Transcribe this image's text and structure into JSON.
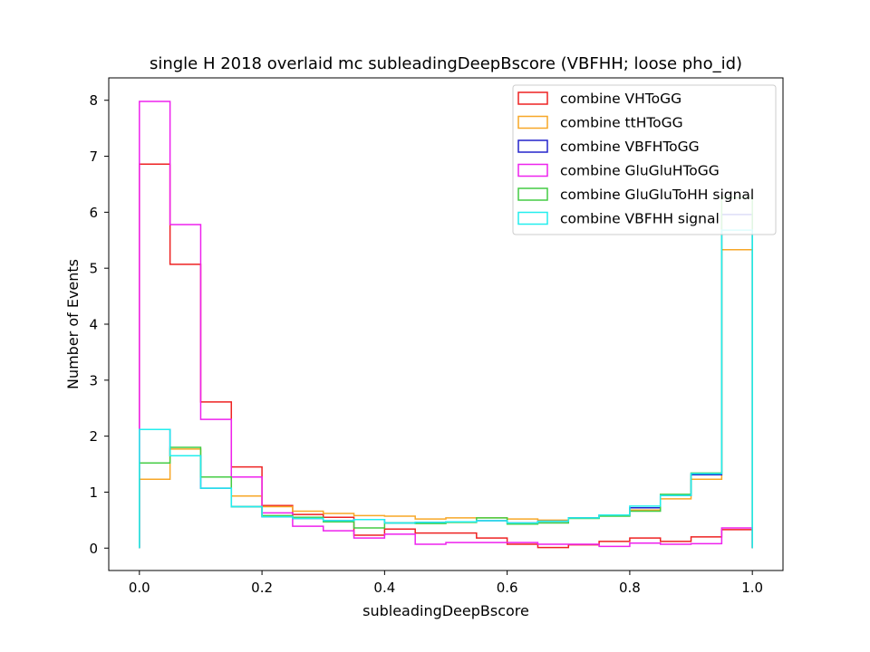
{
  "chart_data": {
    "type": "histogram-step",
    "title": "single H 2018 overlaid mc subleadingDeepBscore (VBFHH; loose pho_id)",
    "xlabel": "subleadingDeepBscore",
    "ylabel": "Number of Events",
    "xlim": [
      -0.05,
      1.05
    ],
    "ylim": [
      -0.4,
      8.4
    ],
    "xticks": [
      0.0,
      0.2,
      0.4,
      0.6,
      0.8,
      1.0
    ],
    "xtick_labels": [
      "0.0",
      "0.2",
      "0.4",
      "0.6",
      "0.8",
      "1.0"
    ],
    "yticks": [
      0,
      1,
      2,
      3,
      4,
      5,
      6,
      7,
      8
    ],
    "ytick_labels": [
      "0",
      "1",
      "2",
      "3",
      "4",
      "5",
      "6",
      "7",
      "8"
    ],
    "grid": false,
    "legend_position": "top-right",
    "bin_edges": [
      0.0,
      0.05,
      0.1,
      0.15,
      0.2,
      0.25,
      0.3,
      0.35,
      0.4,
      0.45,
      0.5,
      0.55,
      0.6,
      0.65,
      0.7,
      0.75,
      0.8,
      0.85,
      0.9,
      0.95,
      1.0
    ],
    "series": [
      {
        "name": "combine VHToGG",
        "color": "#ee2222",
        "values": [
          6.86,
          5.07,
          2.61,
          1.45,
          0.76,
          0.6,
          0.55,
          0.23,
          0.34,
          0.27,
          0.27,
          0.18,
          0.07,
          0.01,
          0.06,
          0.12,
          0.18,
          0.12,
          0.2,
          0.33
        ]
      },
      {
        "name": "combine ttHToGG",
        "color": "#f7a727",
        "values": [
          1.23,
          1.77,
          1.27,
          0.93,
          0.74,
          0.66,
          0.62,
          0.58,
          0.57,
          0.52,
          0.54,
          0.54,
          0.52,
          0.5,
          0.54,
          0.58,
          0.68,
          0.88,
          1.23,
          5.33
        ]
      },
      {
        "name": "combine VBFHToGG",
        "color": "#2424cc",
        "values": [
          2.12,
          1.65,
          1.07,
          0.74,
          0.56,
          0.53,
          0.49,
          0.51,
          0.45,
          0.46,
          0.47,
          0.49,
          0.45,
          0.48,
          0.54,
          0.59,
          0.72,
          0.94,
          1.31,
          5.96
        ]
      },
      {
        "name": "combine GluGluHToGG",
        "color": "#ee22ee",
        "values": [
          7.98,
          5.78,
          2.3,
          1.27,
          0.63,
          0.39,
          0.31,
          0.18,
          0.25,
          0.07,
          0.1,
          0.1,
          0.1,
          0.07,
          0.07,
          0.03,
          0.09,
          0.07,
          0.08,
          0.36
        ]
      },
      {
        "name": "combine GluGluToHH signal",
        "color": "#44cc44",
        "values": [
          1.52,
          1.8,
          1.27,
          0.74,
          0.58,
          0.55,
          0.47,
          0.36,
          0.45,
          0.44,
          0.46,
          0.54,
          0.43,
          0.45,
          0.53,
          0.57,
          0.66,
          0.96,
          1.34,
          6.26
        ]
      },
      {
        "name": "combine VBFHH signal",
        "color": "#22eeee",
        "values": [
          2.12,
          1.65,
          1.07,
          0.74,
          0.56,
          0.53,
          0.49,
          0.51,
          0.45,
          0.46,
          0.47,
          0.49,
          0.45,
          0.48,
          0.54,
          0.59,
          0.75,
          0.94,
          1.33,
          5.68
        ]
      }
    ]
  }
}
